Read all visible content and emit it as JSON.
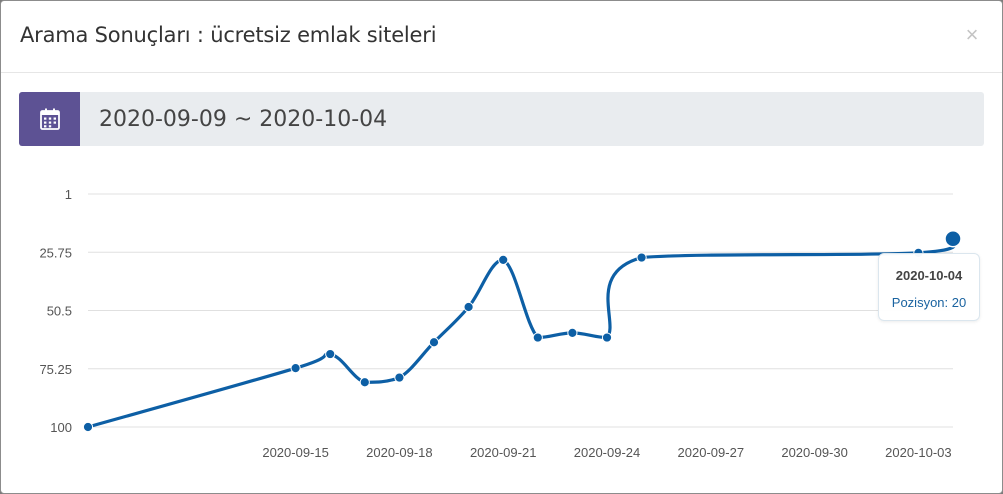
{
  "modal": {
    "title": "Arama Sonuçları : ücretsiz emlak siteleri",
    "close_label": "×"
  },
  "date_range": {
    "value": "2020-09-09 ~ 2020-10-04",
    "icon": "calendar-icon"
  },
  "tooltip": {
    "date": "2020-10-04",
    "value_text": "Pozisyon: 20"
  },
  "colors": {
    "line": "#0d5fa5",
    "addon": "#5d5294",
    "grid": "#e0e0e0",
    "axis_text": "#555555"
  },
  "chart_data": {
    "type": "line",
    "y_reversed": true,
    "ylim": [
      1,
      100
    ],
    "yticks": [
      1,
      25.75,
      50.5,
      75.25,
      100
    ],
    "ytick_labels": [
      "1",
      "25.75",
      "50.5",
      "75.25",
      "100"
    ],
    "xlim": [
      "2020-09-09",
      "2020-10-04"
    ],
    "xtick_labels": [
      "2020-09-15",
      "2020-09-18",
      "2020-09-21",
      "2020-09-24",
      "2020-09-27",
      "2020-09-30",
      "2020-10-03"
    ],
    "series": [
      {
        "points": [
          {
            "x": "2020-09-09",
            "y": 100
          },
          {
            "x": "2020-09-15",
            "y": 75
          },
          {
            "x": "2020-09-16",
            "y": 69
          },
          {
            "x": "2020-09-17",
            "y": 81
          },
          {
            "x": "2020-09-18",
            "y": 79
          },
          {
            "x": "2020-09-19",
            "y": 64
          },
          {
            "x": "2020-09-20",
            "y": 49
          },
          {
            "x": "2020-09-21",
            "y": 29
          },
          {
            "x": "2020-09-22",
            "y": 62
          },
          {
            "x": "2020-09-23",
            "y": 60
          },
          {
            "x": "2020-09-24",
            "y": 62
          },
          {
            "x": "2020-09-25",
            "y": 28
          },
          {
            "x": "2020-10-03",
            "y": 26
          },
          {
            "x": "2020-10-04",
            "y": 20
          }
        ]
      }
    ]
  }
}
